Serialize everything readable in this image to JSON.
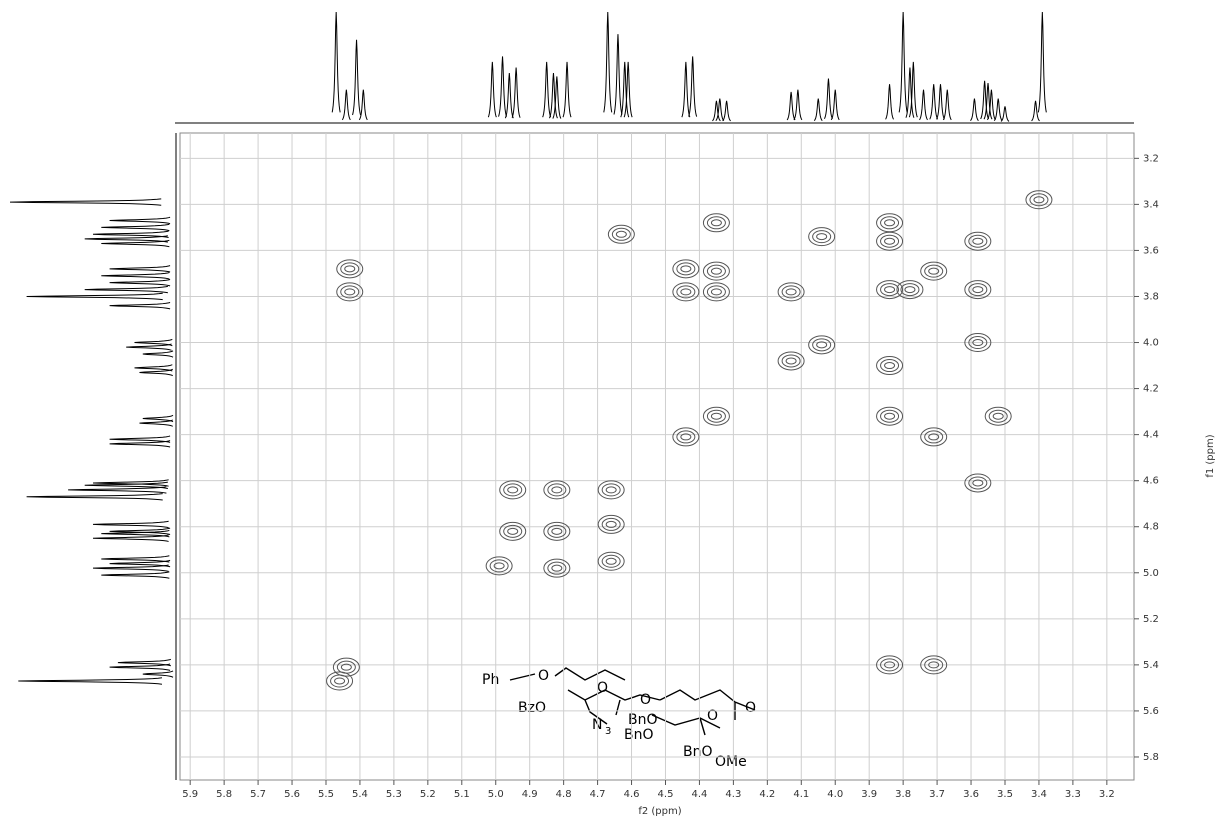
{
  "chart_data": {
    "type": "contour",
    "x_label": "f2 (ppm)",
    "y_label": "f1 (ppm)",
    "xlim": [
      5.93,
      3.12
    ],
    "ylim": [
      3.09,
      5.9
    ],
    "xticks": [
      5.9,
      5.8,
      5.7,
      5.6,
      5.5,
      5.4,
      5.3,
      5.2,
      5.1,
      {
        "value": 5,
        "label": "5.0"
      },
      4.9,
      4.8,
      4.7,
      4.6,
      4.5,
      4.4,
      4.3,
      4.2,
      4.1,
      {
        "value": 4,
        "label": "4.0"
      },
      3.9,
      3.8,
      3.7,
      3.6,
      3.5,
      3.4,
      3.3,
      3.2
    ],
    "yticks": [
      3.2,
      3.4,
      3.6,
      3.8,
      {
        "value": 4,
        "label": "4.0"
      },
      4.2,
      4.4,
      4.6,
      4.8,
      {
        "value": 5,
        "label": "5.0"
      },
      5.2,
      5.4,
      5.6,
      5.8
    ],
    "grid": true,
    "color": "#555555",
    "peaks": {
      "x": [
        5.43,
        5.43,
        5.44,
        5.46,
        4.63,
        4.44,
        4.44,
        4.35,
        4.35,
        4.35,
        4.44,
        4.35,
        4.13,
        4.13,
        4.04,
        4.04,
        3.84,
        3.84,
        3.84,
        3.84,
        3.84,
        3.84,
        3.71,
        3.71,
        3.78,
        3.71,
        3.58,
        3.4,
        3.58,
        3.58,
        3.58,
        3.52,
        4.95,
        4.95,
        4.99,
        4.82,
        4.82,
        4.82,
        4.66,
        4.66,
        4.66
      ],
      "y": [
        3.68,
        3.78,
        5.41,
        5.47,
        3.53,
        3.68,
        3.78,
        3.48,
        3.69,
        3.78,
        4.41,
        4.32,
        3.78,
        4.08,
        4.01,
        3.54,
        3.48,
        3.56,
        3.77,
        4.1,
        4.32,
        5.4,
        5.4,
        4.41,
        3.77,
        3.69,
        3.56,
        3.38,
        3.77,
        4.0,
        4.61,
        4.32,
        4.64,
        4.82,
        4.97,
        4.64,
        4.82,
        4.98,
        4.64,
        4.79,
        4.95
      ]
    },
    "top_trace": {
      "x": [
        5.47,
        5.44,
        5.41,
        5.39,
        5.01,
        4.98,
        4.96,
        4.94,
        4.85,
        4.83,
        4.82,
        4.79,
        4.67,
        4.64,
        4.62,
        4.61,
        4.44,
        4.42,
        4.35,
        4.34,
        4.32,
        4.13,
        4.11,
        4.05,
        4.02,
        4.0,
        3.84,
        3.8,
        3.78,
        3.77,
        3.74,
        3.71,
        3.69,
        3.67,
        3.59,
        3.56,
        3.55,
        3.54,
        3.52,
        3.5,
        3.41,
        3.39
      ],
      "values": [
        100,
        30,
        75,
        30,
        55,
        60,
        45,
        50,
        55,
        45,
        42,
        55,
        100,
        80,
        55,
        55,
        55,
        60,
        20,
        22,
        20,
        28,
        30,
        22,
        40,
        30,
        35,
        100,
        50,
        55,
        30,
        35,
        35,
        30,
        22,
        38,
        36,
        30,
        22,
        15,
        20,
        100
      ]
    },
    "left_trace": {
      "y": [
        3.39,
        3.47,
        3.5,
        3.53,
        3.55,
        3.57,
        3.68,
        3.71,
        3.74,
        3.77,
        3.8,
        3.84,
        4.0,
        4.02,
        4.05,
        4.11,
        4.13,
        4.33,
        4.35,
        4.42,
        4.44,
        4.61,
        4.62,
        4.64,
        4.67,
        4.79,
        4.82,
        4.83,
        4.85,
        4.94,
        4.96,
        4.98,
        5.01,
        5.39,
        5.41,
        5.44,
        5.47
      ],
      "values": [
        100,
        40,
        45,
        50,
        55,
        45,
        40,
        45,
        40,
        55,
        90,
        40,
        25,
        30,
        20,
        25,
        22,
        20,
        22,
        40,
        40,
        50,
        55,
        65,
        90,
        50,
        40,
        45,
        50,
        45,
        40,
        50,
        45,
        35,
        40,
        20,
        95
      ]
    }
  },
  "structure": {
    "labels": [
      "Ph",
      "O",
      "O",
      "O",
      "BzO",
      "N",
      "3",
      "O",
      "BnO",
      "BnO",
      "O",
      "BnO",
      "OMe"
    ]
  }
}
